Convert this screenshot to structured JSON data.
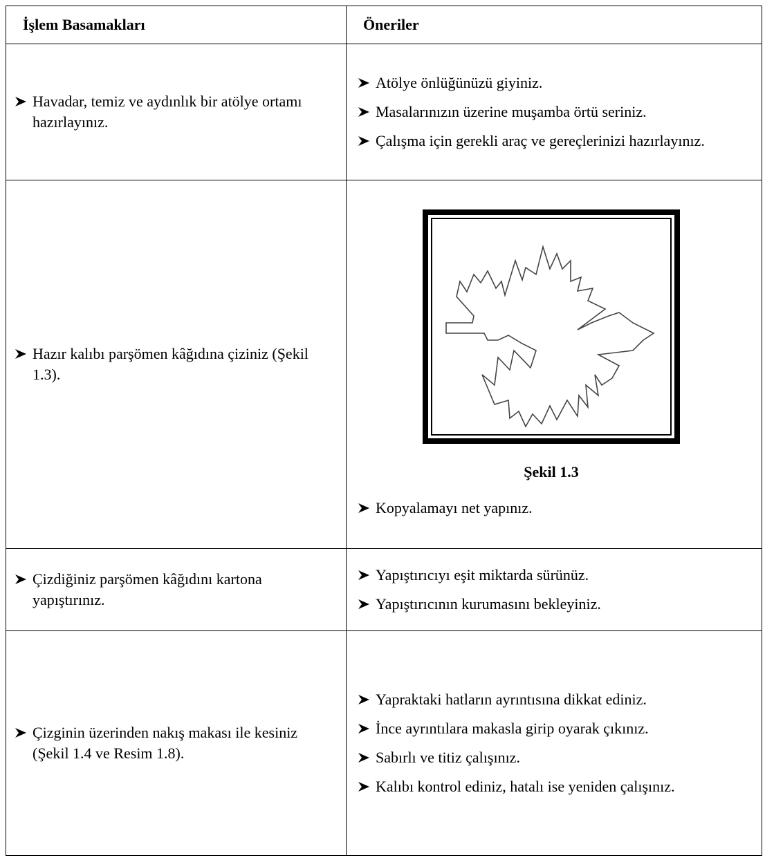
{
  "table": {
    "header": [
      "İşlem Basamakları",
      "Öneriler"
    ],
    "rows": [
      {
        "step": "Havadar, temiz ve aydınlık bir atölye ortamı hazırlayınız.",
        "suggestions": [
          "Atölye önlüğünüzü giyiniz.",
          "Masalarınızın üzerine muşamba örtü seriniz.",
          "Çalışma için gerekli araç ve gereçlerinizi hazırlayınız."
        ]
      },
      {
        "step": "Hazır kalıbı parşömen kâğıdına çiziniz (Şekil 1.3).",
        "figure_caption": "Şekil 1.3",
        "suggestions": [
          "Kopyalamayı net yapınız."
        ]
      },
      {
        "step": "Çizdiğiniz parşömen kâğıdını kartona yapıştırınız.",
        "suggestions": [
          "Yapıştırıcıyı eşit miktarda sürünüz.",
          "Yapıştırıcının kurumasını bekleyiniz."
        ]
      },
      {
        "step": "Çizginin üzerinden nakış makası ile kesiniz (Şekil 1.4 ve Resim 1.8).",
        "suggestions": [
          "Yapraktaki hatların ayrıntısına dikkat ediniz.",
          "İnce ayrıntılara makasla girip oyarak çıkınız.",
          "Sabırlı ve titiz çalışınız.",
          "Kalıbı kontrol ediniz, hatalı ise yeniden çalışınız."
        ]
      }
    ]
  }
}
